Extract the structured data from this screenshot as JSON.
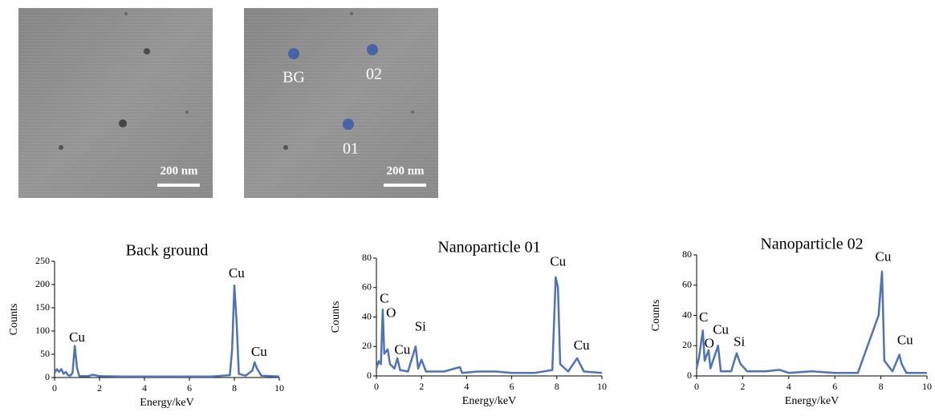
{
  "micrographs": [
    {
      "scale_bar": "200 nm"
    },
    {
      "scale_bar": "200 nm",
      "points": [
        "BG",
        "02",
        "01"
      ]
    }
  ],
  "chart_data": [
    {
      "type": "line",
      "title": "Back ground",
      "x_label": "Energy/keV",
      "y_label": "Counts",
      "x": [
        0,
        0.1,
        0.2,
        0.3,
        0.4,
        0.5,
        0.6,
        0.7,
        0.8,
        0.9,
        1.0,
        1.1,
        1.5,
        1.7,
        2,
        3,
        4,
        5,
        6,
        7,
        7.8,
        7.9,
        8.0,
        8.1,
        8.2,
        8.5,
        8.8,
        8.9,
        9.0,
        9.2,
        10
      ],
      "series": [
        {
          "name": "Back ground",
          "color": "#4f72b8",
          "values": [
            10,
            18,
            12,
            18,
            8,
            12,
            5,
            4,
            10,
            68,
            20,
            3,
            3,
            6,
            3,
            2,
            2,
            2,
            2,
            2,
            5,
            60,
            198,
            120,
            8,
            4,
            15,
            33,
            20,
            4,
            2
          ]
        }
      ],
      "annotations": [
        {
          "text": "Cu",
          "x": 1.0,
          "y": 84
        },
        {
          "text": "Cu",
          "x": 8.1,
          "y": 222
        },
        {
          "text": "Cu",
          "x": 9.1,
          "y": 53
        }
      ],
      "xlim": [
        0,
        10
      ],
      "xticks": [
        0,
        2,
        4,
        6,
        8,
        10
      ],
      "ylim": [
        0,
        250
      ],
      "yticks": [
        0,
        50,
        100,
        150,
        200,
        250
      ]
    },
    {
      "type": "line",
      "title": "Nanoparticle 01",
      "x_label": "Energy/keV",
      "y_label": "Counts",
      "x": [
        0,
        0.1,
        0.2,
        0.28,
        0.35,
        0.5,
        0.6,
        0.8,
        0.93,
        1.05,
        1.4,
        1.74,
        1.85,
        2.0,
        2.2,
        3,
        3.7,
        3.8,
        4.5,
        5.3,
        6,
        7,
        7.8,
        7.95,
        8.05,
        8.15,
        8.5,
        8.9,
        9.0,
        9.2,
        10
      ],
      "series": [
        {
          "name": "Nanoparticle 01",
          "color": "#4f72b8",
          "values": [
            5,
            10,
            8,
            45,
            15,
            18,
            8,
            5,
            12,
            4,
            3,
            20,
            5,
            11,
            3,
            3,
            6,
            2,
            3,
            3,
            2,
            2,
            4,
            67,
            60,
            8,
            3,
            12,
            9,
            3,
            2
          ]
        }
      ],
      "annotations": [
        {
          "text": "C",
          "x": 0.35,
          "y": 52
        },
        {
          "text": "O",
          "x": 0.65,
          "y": 42
        },
        {
          "text": "Cu",
          "x": 1.15,
          "y": 17
        },
        {
          "text": "Si",
          "x": 1.95,
          "y": 33
        },
        {
          "text": "Cu",
          "x": 8.05,
          "y": 77
        },
        {
          "text": "Cu",
          "x": 9.1,
          "y": 20
        }
      ],
      "xlim": [
        0,
        10
      ],
      "xticks": [
        0,
        2,
        4,
        6,
        8,
        10
      ],
      "ylim": [
        0,
        80
      ],
      "yticks": [
        0,
        20,
        40,
        60,
        80
      ]
    },
    {
      "type": "line",
      "title": "Nanoparticle 02",
      "x_label": "Energy/keV",
      "y_label": "Counts",
      "x": [
        0,
        0.1,
        0.27,
        0.35,
        0.52,
        0.6,
        0.93,
        1.05,
        1.5,
        1.74,
        1.9,
        2.2,
        3,
        3.6,
        4,
        5,
        6,
        7,
        7.9,
        8.05,
        8.15,
        8.5,
        8.8,
        8.9,
        9.1,
        10
      ],
      "series": [
        {
          "name": "Nanoparticle 02",
          "color": "#4f72b8",
          "values": [
            5,
            12,
            30,
            10,
            17,
            5,
            20,
            3,
            3,
            15,
            8,
            3,
            3,
            4,
            2,
            3,
            2,
            2,
            40,
            69,
            10,
            3,
            14,
            8,
            2,
            2
          ]
        }
      ],
      "annotations": [
        {
          "text": "C",
          "x": 0.3,
          "y": 38
        },
        {
          "text": "O",
          "x": 0.55,
          "y": 21
        },
        {
          "text": "Cu",
          "x": 1.05,
          "y": 30
        },
        {
          "text": "Si",
          "x": 1.85,
          "y": 22
        },
        {
          "text": "Cu",
          "x": 8.1,
          "y": 78
        },
        {
          "text": "Cu",
          "x": 9.05,
          "y": 23
        }
      ],
      "xlim": [
        0,
        10
      ],
      "xticks": [
        0,
        2,
        4,
        6,
        8,
        10
      ],
      "ylim": [
        0,
        80
      ],
      "yticks": [
        0,
        20,
        40,
        60,
        80
      ]
    }
  ]
}
